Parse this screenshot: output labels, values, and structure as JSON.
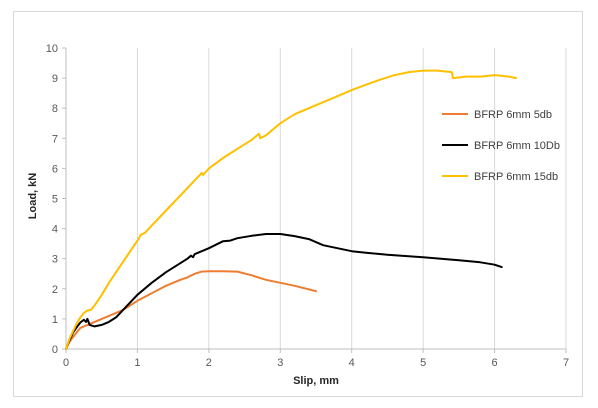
{
  "chart_data": {
    "type": "line",
    "title": "",
    "xlabel": "Slip, mm",
    "ylabel": "Load, kN",
    "xlim": [
      0,
      7
    ],
    "ylim": [
      0,
      10
    ],
    "xticks": [
      "0",
      "1",
      "2",
      "3",
      "4",
      "5",
      "6",
      "7"
    ],
    "yticks": [
      "0",
      "1",
      "2",
      "3",
      "4",
      "5",
      "6",
      "7",
      "8",
      "9",
      "10"
    ],
    "grid": "vertical major gridlines",
    "legend_position": "right",
    "series": [
      {
        "name": "BFRP 6mm 5db",
        "color": "#ED7D31",
        "points": [
          [
            0,
            0
          ],
          [
            0.05,
            0.25
          ],
          [
            0.1,
            0.4
          ],
          [
            0.15,
            0.55
          ],
          [
            0.2,
            0.7
          ],
          [
            0.3,
            0.8
          ],
          [
            0.4,
            0.9
          ],
          [
            0.5,
            1.0
          ],
          [
            0.6,
            1.1
          ],
          [
            0.7,
            1.2
          ],
          [
            0.8,
            1.3
          ],
          [
            1.0,
            1.6
          ],
          [
            1.2,
            1.85
          ],
          [
            1.4,
            2.1
          ],
          [
            1.6,
            2.3
          ],
          [
            1.7,
            2.38
          ],
          [
            1.8,
            2.5
          ],
          [
            1.9,
            2.57
          ],
          [
            2.0,
            2.58
          ],
          [
            2.2,
            2.58
          ],
          [
            2.4,
            2.57
          ],
          [
            2.6,
            2.45
          ],
          [
            2.8,
            2.3
          ],
          [
            3.0,
            2.2
          ],
          [
            3.2,
            2.1
          ],
          [
            3.4,
            1.98
          ],
          [
            3.5,
            1.92
          ]
        ]
      },
      {
        "name": "BFRP 6mm 10Db",
        "color": "#000000",
        "points": [
          [
            0,
            0
          ],
          [
            0.05,
            0.3
          ],
          [
            0.1,
            0.55
          ],
          [
            0.15,
            0.72
          ],
          [
            0.2,
            0.88
          ],
          [
            0.25,
            0.97
          ],
          [
            0.28,
            0.9
          ],
          [
            0.3,
            1.0
          ],
          [
            0.33,
            0.8
          ],
          [
            0.4,
            0.75
          ],
          [
            0.5,
            0.8
          ],
          [
            0.6,
            0.9
          ],
          [
            0.7,
            1.05
          ],
          [
            0.8,
            1.3
          ],
          [
            0.9,
            1.55
          ],
          [
            1.0,
            1.8
          ],
          [
            1.2,
            2.2
          ],
          [
            1.4,
            2.55
          ],
          [
            1.6,
            2.85
          ],
          [
            1.7,
            3.0
          ],
          [
            1.75,
            3.1
          ],
          [
            1.78,
            3.05
          ],
          [
            1.8,
            3.15
          ],
          [
            2.0,
            3.35
          ],
          [
            2.2,
            3.58
          ],
          [
            2.3,
            3.6
          ],
          [
            2.4,
            3.68
          ],
          [
            2.6,
            3.76
          ],
          [
            2.8,
            3.82
          ],
          [
            3.0,
            3.82
          ],
          [
            3.2,
            3.75
          ],
          [
            3.4,
            3.65
          ],
          [
            3.6,
            3.45
          ],
          [
            3.8,
            3.35
          ],
          [
            4.0,
            3.25
          ],
          [
            4.2,
            3.2
          ],
          [
            4.5,
            3.13
          ],
          [
            5.0,
            3.05
          ],
          [
            5.5,
            2.95
          ],
          [
            5.8,
            2.88
          ],
          [
            6.0,
            2.8
          ],
          [
            6.1,
            2.72
          ]
        ]
      },
      {
        "name": "BFRP 6mm 15db",
        "color": "#FFC000",
        "points": [
          [
            0,
            0
          ],
          [
            0.05,
            0.35
          ],
          [
            0.1,
            0.6
          ],
          [
            0.15,
            0.85
          ],
          [
            0.2,
            1.05
          ],
          [
            0.25,
            1.2
          ],
          [
            0.3,
            1.28
          ],
          [
            0.35,
            1.3
          ],
          [
            0.4,
            1.45
          ],
          [
            0.5,
            1.8
          ],
          [
            0.6,
            2.2
          ],
          [
            0.8,
            2.9
          ],
          [
            1.0,
            3.6
          ],
          [
            1.05,
            3.8
          ],
          [
            1.1,
            3.85
          ],
          [
            1.2,
            4.1
          ],
          [
            1.4,
            4.6
          ],
          [
            1.6,
            5.1
          ],
          [
            1.8,
            5.6
          ],
          [
            1.9,
            5.85
          ],
          [
            1.92,
            5.78
          ],
          [
            2.0,
            6.0
          ],
          [
            2.2,
            6.35
          ],
          [
            2.4,
            6.65
          ],
          [
            2.6,
            6.95
          ],
          [
            2.7,
            7.15
          ],
          [
            2.72,
            7.0
          ],
          [
            2.8,
            7.1
          ],
          [
            3.0,
            7.5
          ],
          [
            3.2,
            7.8
          ],
          [
            3.4,
            8.0
          ],
          [
            3.6,
            8.2
          ],
          [
            3.8,
            8.4
          ],
          [
            4.0,
            8.6
          ],
          [
            4.2,
            8.78
          ],
          [
            4.4,
            8.95
          ],
          [
            4.6,
            9.1
          ],
          [
            4.8,
            9.2
          ],
          [
            5.0,
            9.25
          ],
          [
            5.2,
            9.25
          ],
          [
            5.4,
            9.2
          ],
          [
            5.42,
            9.0
          ],
          [
            5.6,
            9.05
          ],
          [
            5.8,
            9.05
          ],
          [
            6.0,
            9.1
          ],
          [
            6.2,
            9.05
          ],
          [
            6.3,
            9.0
          ]
        ]
      }
    ]
  }
}
